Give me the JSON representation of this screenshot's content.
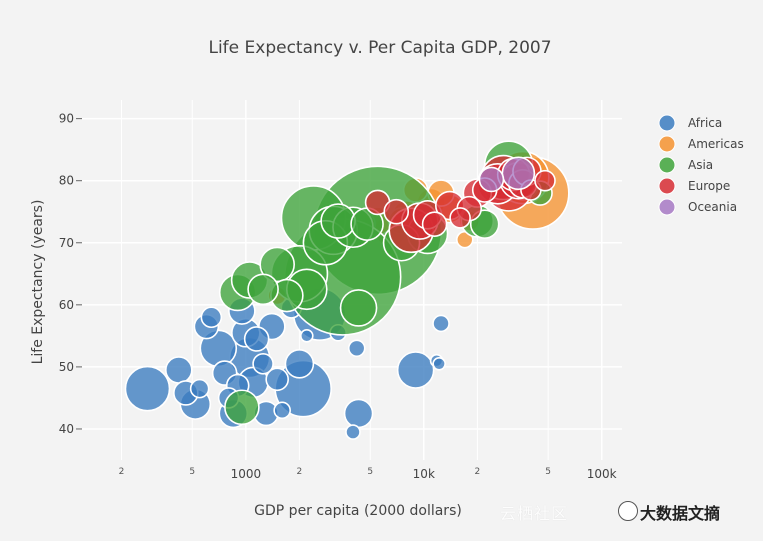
{
  "chart_data": {
    "type": "scatter",
    "title": "Life Expectancy v. Per Capita GDP, 2007",
    "xlabel": "GDP per capita (2000 dollars)",
    "ylabel": "Life Expectancy (years)",
    "xscale": "log",
    "xlim": [
      120,
      130000
    ],
    "ylim": [
      35,
      93
    ],
    "yticks": [
      40,
      50,
      60,
      70,
      80,
      90
    ],
    "xticks_major": [
      {
        "value": 1000,
        "label": "1000"
      },
      {
        "value": 10000,
        "label": "10k"
      },
      {
        "value": 100000,
        "label": "100k"
      }
    ],
    "xticks_minor": [
      {
        "value": 200,
        "label": "2"
      },
      {
        "value": 500,
        "label": "5"
      },
      {
        "value": 2000,
        "label": "2"
      },
      {
        "value": 5000,
        "label": "5"
      },
      {
        "value": 20000,
        "label": "2"
      },
      {
        "value": 50000,
        "label": "5"
      }
    ],
    "grid": true,
    "legend_position": "right",
    "series": [
      {
        "name": "Africa",
        "color": "#3a7bbf",
        "points": [
          {
            "x": 280,
            "y": 46.5,
            "r": 22
          },
          {
            "x": 420,
            "y": 49.5,
            "r": 13
          },
          {
            "x": 460,
            "y": 45.8,
            "r": 12
          },
          {
            "x": 520,
            "y": 44.0,
            "r": 15
          },
          {
            "x": 550,
            "y": 46.5,
            "r": 9
          },
          {
            "x": 600,
            "y": 56.5,
            "r": 12
          },
          {
            "x": 640,
            "y": 58.0,
            "r": 10
          },
          {
            "x": 700,
            "y": 53.0,
            "r": 18
          },
          {
            "x": 760,
            "y": 49.0,
            "r": 12
          },
          {
            "x": 800,
            "y": 45.0,
            "r": 10
          },
          {
            "x": 850,
            "y": 42.5,
            "r": 14
          },
          {
            "x": 900,
            "y": 47.0,
            "r": 11
          },
          {
            "x": 950,
            "y": 59.0,
            "r": 13
          },
          {
            "x": 1000,
            "y": 55.5,
            "r": 14
          },
          {
            "x": 1050,
            "y": 51.5,
            "r": 20
          },
          {
            "x": 1100,
            "y": 47.5,
            "r": 15
          },
          {
            "x": 1150,
            "y": 54.5,
            "r": 12
          },
          {
            "x": 1250,
            "y": 50.5,
            "r": 10
          },
          {
            "x": 1300,
            "y": 42.5,
            "r": 12
          },
          {
            "x": 1400,
            "y": 56.5,
            "r": 13
          },
          {
            "x": 1500,
            "y": 48.0,
            "r": 11
          },
          {
            "x": 1600,
            "y": 43.0,
            "r": 8
          },
          {
            "x": 1800,
            "y": 59.5,
            "r": 10
          },
          {
            "x": 2000,
            "y": 50.5,
            "r": 14
          },
          {
            "x": 2100,
            "y": 46.5,
            "r": 28
          },
          {
            "x": 2200,
            "y": 55.0,
            "r": 6
          },
          {
            "x": 2600,
            "y": 58.5,
            "r": 26
          },
          {
            "x": 3300,
            "y": 55.5,
            "r": 8
          },
          {
            "x": 4000,
            "y": 39.5,
            "r": 7
          },
          {
            "x": 4200,
            "y": 53.0,
            "r": 8
          },
          {
            "x": 4300,
            "y": 42.5,
            "r": 14
          },
          {
            "x": 9000,
            "y": 49.5,
            "r": 18
          },
          {
            "x": 11800,
            "y": 51.0,
            "r": 6
          },
          {
            "x": 12500,
            "y": 57.0,
            "r": 8
          },
          {
            "x": 12200,
            "y": 50.5,
            "r": 6
          }
        ]
      },
      {
        "name": "Americas",
        "color": "#f5922f",
        "points": [
          {
            "x": 1500,
            "y": 61.5,
            "r": 9
          },
          {
            "x": 3200,
            "y": 72.5,
            "r": 12
          },
          {
            "x": 3600,
            "y": 71.5,
            "r": 11
          },
          {
            "x": 4500,
            "y": 73.0,
            "r": 13
          },
          {
            "x": 5500,
            "y": 73.5,
            "r": 14
          },
          {
            "x": 6500,
            "y": 72.0,
            "r": 16
          },
          {
            "x": 7500,
            "y": 73.5,
            "r": 13
          },
          {
            "x": 8000,
            "y": 74.5,
            "r": 14
          },
          {
            "x": 9000,
            "y": 78.5,
            "r": 12
          },
          {
            "x": 9500,
            "y": 72.5,
            "r": 10
          },
          {
            "x": 11000,
            "y": 76.5,
            "r": 14
          },
          {
            "x": 12500,
            "y": 78.0,
            "r": 13
          },
          {
            "x": 14000,
            "y": 75.5,
            "r": 14
          },
          {
            "x": 17000,
            "y": 70.5,
            "r": 8
          },
          {
            "x": 18000,
            "y": 73.5,
            "r": 10
          },
          {
            "x": 36000,
            "y": 80.5,
            "r": 26
          },
          {
            "x": 41000,
            "y": 78.0,
            "r": 36
          }
        ]
      },
      {
        "name": "Asia",
        "color": "#3ea33a",
        "points": [
          {
            "x": 900,
            "y": 62.0,
            "r": 18
          },
          {
            "x": 950,
            "y": 43.5,
            "r": 17
          },
          {
            "x": 1050,
            "y": 64.0,
            "r": 18
          },
          {
            "x": 1250,
            "y": 62.5,
            "r": 15
          },
          {
            "x": 1500,
            "y": 66.5,
            "r": 17
          },
          {
            "x": 1700,
            "y": 61.5,
            "r": 16
          },
          {
            "x": 2000,
            "y": 65.0,
            "r": 28
          },
          {
            "x": 2200,
            "y": 62.5,
            "r": 20
          },
          {
            "x": 2400,
            "y": 74.0,
            "r": 32
          },
          {
            "x": 2800,
            "y": 70.0,
            "r": 22
          },
          {
            "x": 3100,
            "y": 72.0,
            "r": 24
          },
          {
            "x": 3300,
            "y": 73.5,
            "r": 17
          },
          {
            "x": 3500,
            "y": 64.5,
            "r": 58
          },
          {
            "x": 4000,
            "y": 72.5,
            "r": 20
          },
          {
            "x": 4300,
            "y": 59.5,
            "r": 18
          },
          {
            "x": 4800,
            "y": 73.0,
            "r": 16
          },
          {
            "x": 5500,
            "y": 72.0,
            "r": 64
          },
          {
            "x": 7500,
            "y": 70.0,
            "r": 18
          },
          {
            "x": 10500,
            "y": 71.5,
            "r": 20
          },
          {
            "x": 20000,
            "y": 73.5,
            "r": 16
          },
          {
            "x": 22000,
            "y": 73.0,
            "r": 14
          },
          {
            "x": 25000,
            "y": 80.0,
            "r": 16
          },
          {
            "x": 30000,
            "y": 82.5,
            "r": 24
          },
          {
            "x": 31000,
            "y": 79.0,
            "r": 12
          },
          {
            "x": 36000,
            "y": 79.5,
            "r": 16
          },
          {
            "x": 45000,
            "y": 78.0,
            "r": 12
          }
        ]
      },
      {
        "name": "Europe",
        "color": "#d62c33",
        "points": [
          {
            "x": 5500,
            "y": 76.5,
            "r": 12
          },
          {
            "x": 7000,
            "y": 75.0,
            "r": 12
          },
          {
            "x": 8500,
            "y": 72.0,
            "r": 22
          },
          {
            "x": 9500,
            "y": 73.5,
            "r": 18
          },
          {
            "x": 10500,
            "y": 74.5,
            "r": 14
          },
          {
            "x": 11500,
            "y": 73.0,
            "r": 12
          },
          {
            "x": 14000,
            "y": 76.0,
            "r": 14
          },
          {
            "x": 16000,
            "y": 74.0,
            "r": 10
          },
          {
            "x": 18000,
            "y": 75.5,
            "r": 12
          },
          {
            "x": 20000,
            "y": 78.0,
            "r": 14
          },
          {
            "x": 22000,
            "y": 78.5,
            "r": 12
          },
          {
            "x": 26000,
            "y": 79.5,
            "r": 20
          },
          {
            "x": 28000,
            "y": 80.5,
            "r": 22
          },
          {
            "x": 30000,
            "y": 79.0,
            "r": 24
          },
          {
            "x": 32000,
            "y": 81.0,
            "r": 16
          },
          {
            "x": 34000,
            "y": 80.0,
            "r": 18
          },
          {
            "x": 36000,
            "y": 79.5,
            "r": 14
          },
          {
            "x": 38000,
            "y": 81.5,
            "r": 14
          },
          {
            "x": 40000,
            "y": 78.5,
            "r": 10
          },
          {
            "x": 48000,
            "y": 80.0,
            "r": 10
          }
        ]
      },
      {
        "name": "Oceania",
        "color": "#a678c3",
        "points": [
          {
            "x": 24000,
            "y": 80.2,
            "r": 12
          },
          {
            "x": 34000,
            "y": 81.2,
            "r": 16
          }
        ]
      }
    ]
  }
}
